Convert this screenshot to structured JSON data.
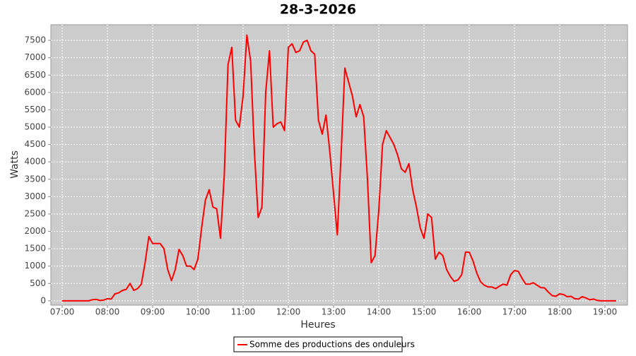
{
  "chart_data": {
    "type": "line",
    "title": "28-3-2026",
    "x_label": "Heures",
    "y_label": "Watts",
    "x": [
      "07:00",
      "07:05",
      "07:10",
      "07:15",
      "07:20",
      "07:25",
      "07:30",
      "07:35",
      "07:40",
      "07:45",
      "07:50",
      "07:55",
      "08:00",
      "08:05",
      "08:10",
      "08:15",
      "08:20",
      "08:25",
      "08:30",
      "08:35",
      "08:40",
      "08:45",
      "08:50",
      "08:55",
      "09:00",
      "09:05",
      "09:10",
      "09:15",
      "09:20",
      "09:25",
      "09:30",
      "09:35",
      "09:40",
      "09:45",
      "09:50",
      "09:55",
      "10:00",
      "10:05",
      "10:10",
      "10:15",
      "10:20",
      "10:25",
      "10:30",
      "10:35",
      "10:40",
      "10:45",
      "10:50",
      "10:55",
      "11:00",
      "11:05",
      "11:10",
      "11:15",
      "11:20",
      "11:25",
      "11:30",
      "11:35",
      "11:40",
      "11:45",
      "11:50",
      "11:55",
      "12:00",
      "12:05",
      "12:10",
      "12:15",
      "12:20",
      "12:25",
      "12:30",
      "12:35",
      "12:40",
      "12:45",
      "12:50",
      "12:55",
      "13:00",
      "13:05",
      "13:10",
      "13:15",
      "13:20",
      "13:25",
      "13:30",
      "13:35",
      "13:40",
      "13:45",
      "13:50",
      "13:55",
      "14:00",
      "14:05",
      "14:10",
      "14:15",
      "14:20",
      "14:25",
      "14:30",
      "14:35",
      "14:40",
      "14:45",
      "14:50",
      "14:55",
      "15:00",
      "15:05",
      "15:10",
      "15:15",
      "15:20",
      "15:25",
      "15:30",
      "15:35",
      "15:40",
      "15:45",
      "15:50",
      "15:55",
      "16:00",
      "16:05",
      "16:10",
      "16:15",
      "16:20",
      "16:25",
      "16:30",
      "16:35",
      "16:40",
      "16:45",
      "16:50",
      "16:55",
      "17:00",
      "17:05",
      "17:10",
      "17:15",
      "17:20",
      "17:25",
      "17:30",
      "17:35",
      "17:40",
      "17:45",
      "17:50",
      "17:55",
      "18:00",
      "18:05",
      "18:10",
      "18:15",
      "18:20",
      "18:25",
      "18:30",
      "18:35",
      "18:40",
      "18:45",
      "18:50",
      "18:55",
      "19:00",
      "19:05",
      "19:10",
      "19:15"
    ],
    "series": [
      {
        "name": "Somme des productions des onduleurs",
        "color": "#ff0000",
        "values": [
          0,
          0,
          0,
          0,
          0,
          0,
          0,
          0,
          30,
          40,
          10,
          20,
          60,
          50,
          200,
          230,
          300,
          330,
          500,
          300,
          350,
          480,
          1100,
          1850,
          1650,
          1650,
          1650,
          1500,
          900,
          580,
          900,
          1480,
          1300,
          1000,
          1000,
          900,
          1200,
          2100,
          2900,
          3200,
          2700,
          2650,
          1800,
          3600,
          6800,
          7300,
          5200,
          5000,
          5900,
          7650,
          6900,
          4300,
          2400,
          2700,
          6000,
          7200,
          5000,
          5100,
          5150,
          4900,
          7300,
          7400,
          7150,
          7200,
          7450,
          7500,
          7200,
          7100,
          5200,
          4800,
          5350,
          4300,
          3100,
          1900,
          4200,
          6700,
          6300,
          5900,
          5300,
          5650,
          5300,
          3500,
          1100,
          1300,
          2600,
          4500,
          4900,
          4700,
          4500,
          4200,
          3800,
          3700,
          3950,
          3200,
          2700,
          2100,
          1800,
          2500,
          2400,
          1200,
          1400,
          1300,
          900,
          700,
          560,
          600,
          750,
          1400,
          1400,
          1150,
          800,
          550,
          450,
          400,
          400,
          350,
          420,
          480,
          450,
          750,
          870,
          850,
          650,
          480,
          480,
          520,
          450,
          380,
          370,
          250,
          150,
          130,
          200,
          180,
          120,
          130,
          60,
          50,
          120,
          80,
          30,
          50,
          10,
          0,
          0,
          0,
          0,
          0
        ]
      }
    ],
    "xlim": [
      "06:45",
      "19:30"
    ],
    "xticks": [
      "07:00",
      "08:00",
      "09:00",
      "10:00",
      "11:00",
      "12:00",
      "13:00",
      "14:00",
      "15:00",
      "16:00",
      "17:00",
      "18:00",
      "19:00"
    ],
    "ylim": [
      -125,
      7950
    ],
    "yticks": [
      0,
      500,
      1000,
      1500,
      2000,
      2500,
      3000,
      3500,
      4000,
      4500,
      5000,
      5500,
      6000,
      6500,
      7000,
      7500
    ],
    "grid": true,
    "legend": "bottom"
  }
}
